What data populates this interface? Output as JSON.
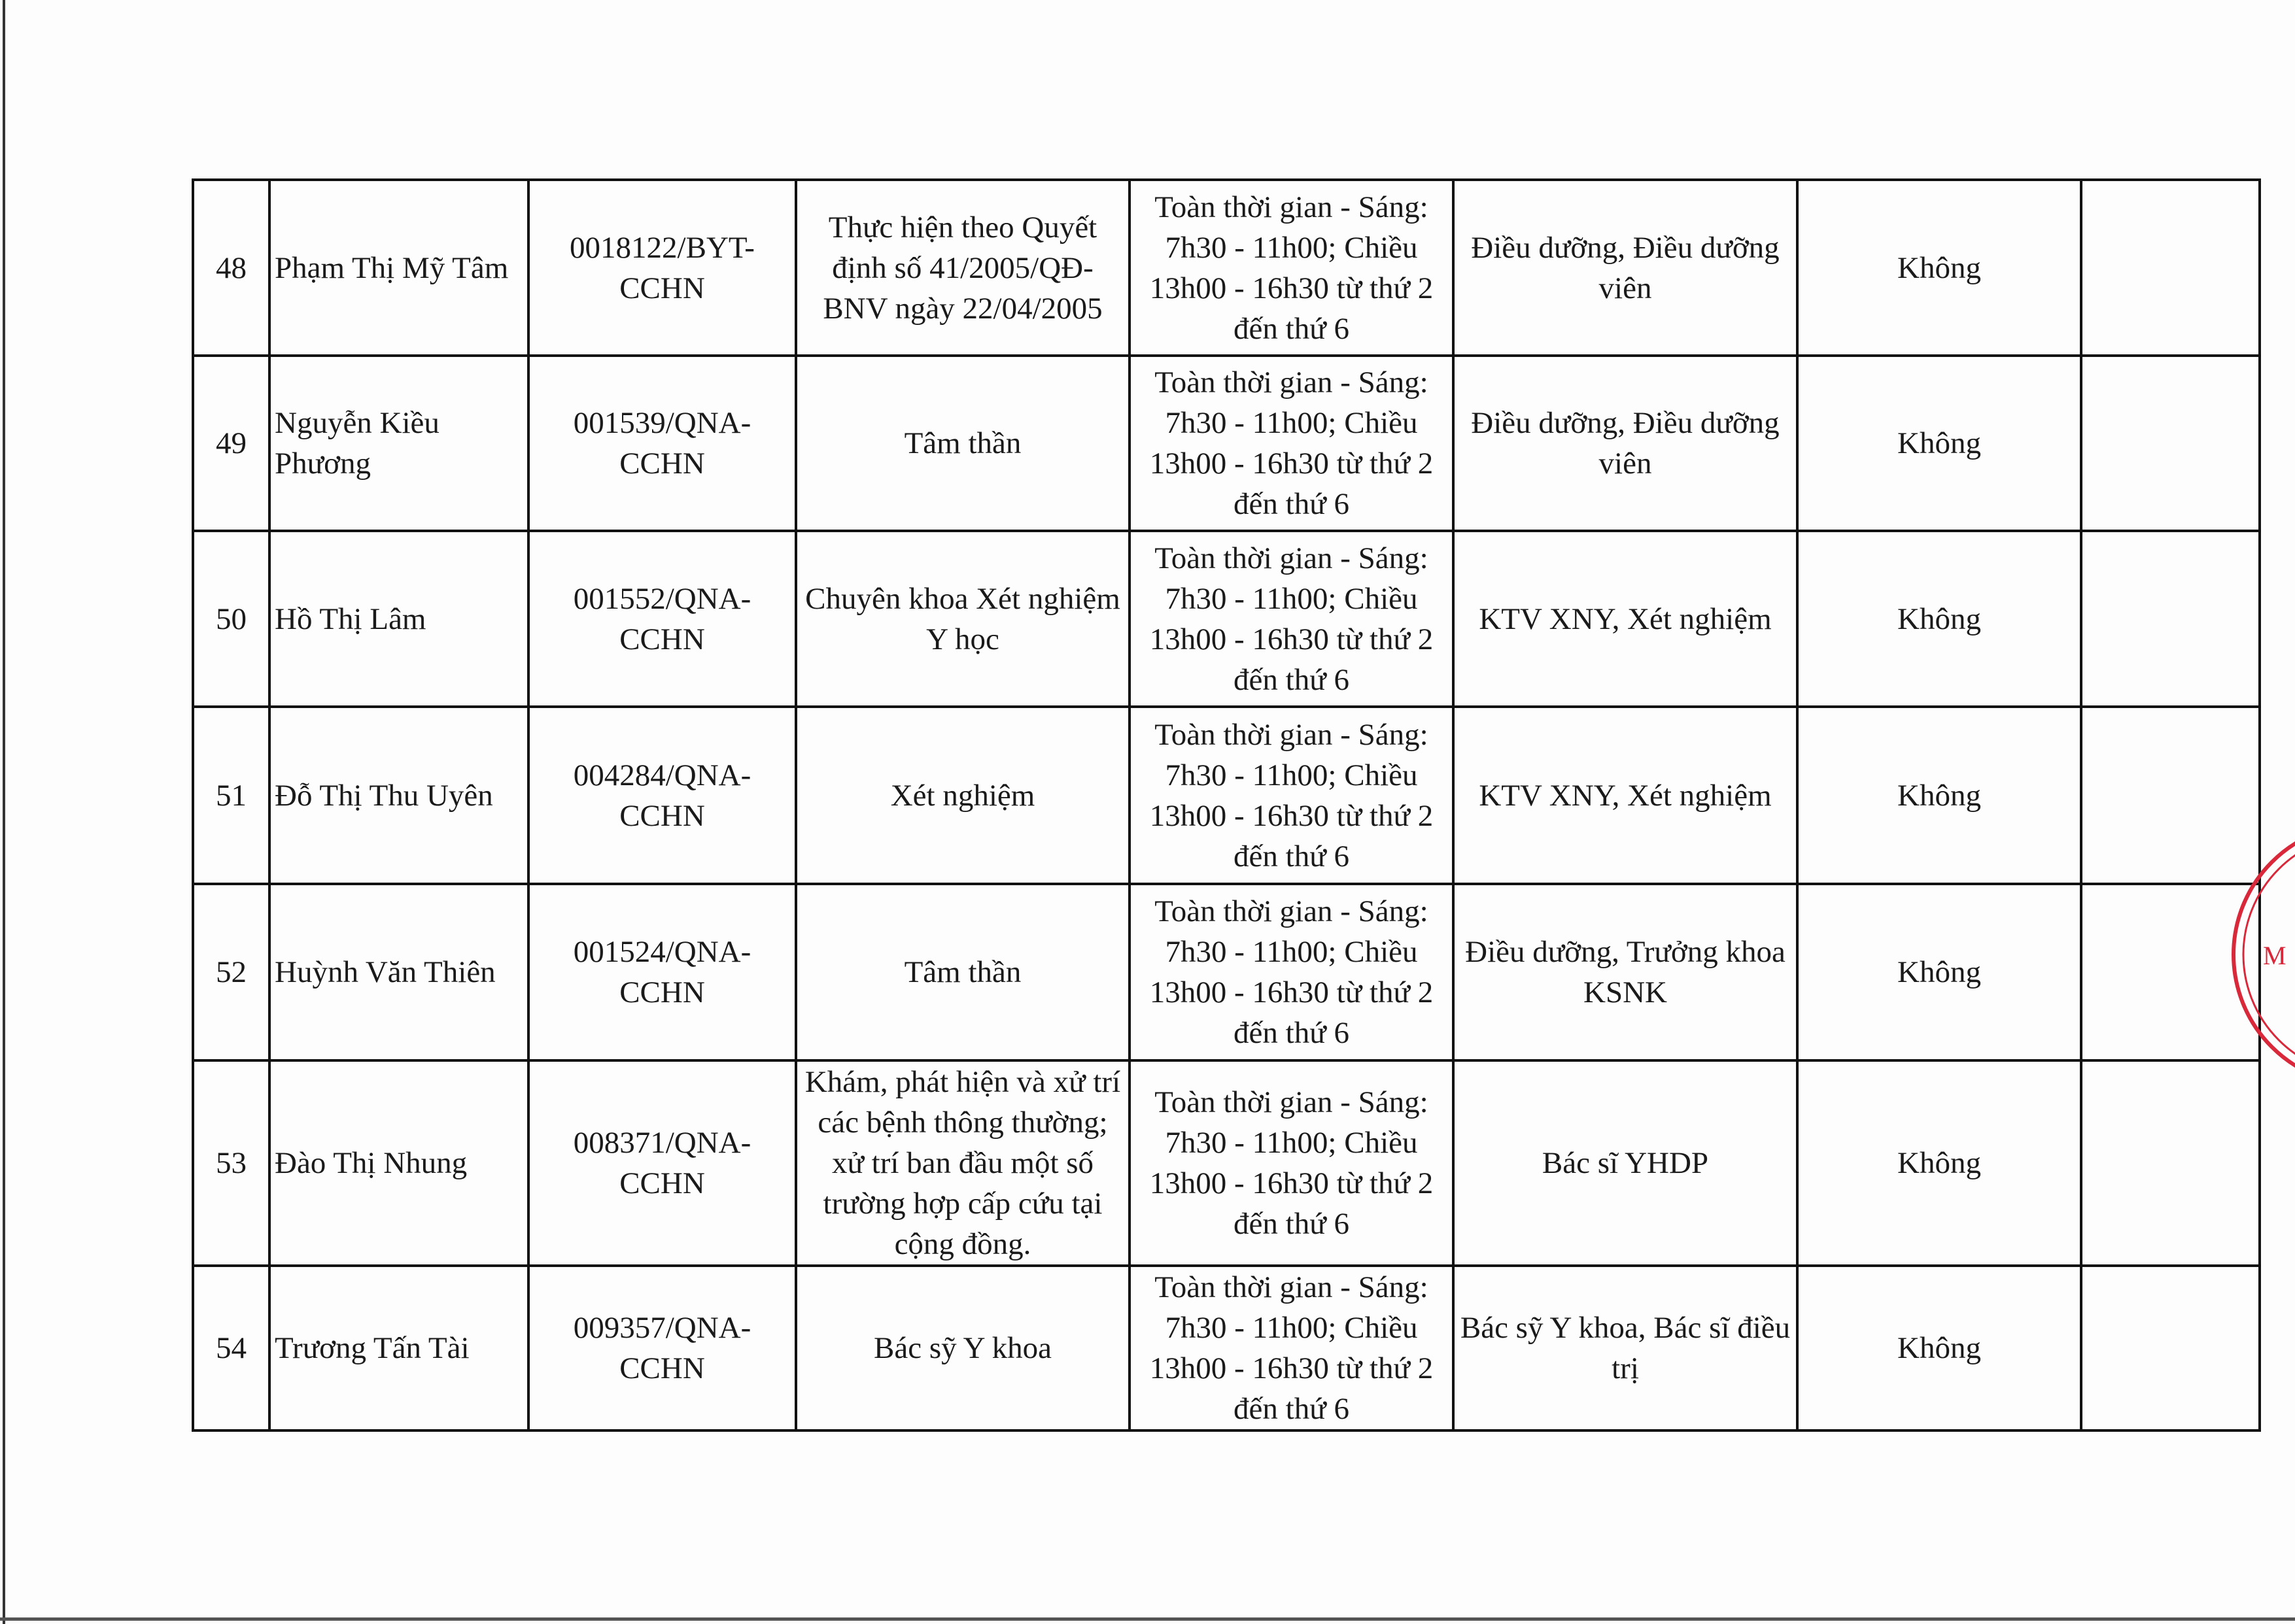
{
  "rows": [
    {
      "no": "48",
      "name": "Phạm Thị Mỹ Tâm",
      "cert": "0018122/BYT-CCHN",
      "scope": "Thực hiện theo Quyết định số 41/2005/QĐ-BNV ngày 22/04/2005",
      "time": "Toàn thời gian - Sáng: 7h30 - 11h00; Chiều 13h00 - 16h30 từ thứ 2 đến thứ 6",
      "position": "Điều dưỡng, Điều dưỡng viên",
      "other": "Không",
      "note": ""
    },
    {
      "no": "49",
      "name": "Nguyễn Kiều Phương",
      "cert": "001539/QNA-CCHN",
      "scope": "Tâm thần",
      "time": "Toàn thời gian - Sáng: 7h30 - 11h00; Chiều 13h00 - 16h30 từ thứ 2 đến thứ 6",
      "position": "Điều dưỡng, Điều dưỡng viên",
      "other": "Không",
      "note": ""
    },
    {
      "no": "50",
      "name": "Hồ Thị Lâm",
      "cert": "001552/QNA-CCHN",
      "scope": "Chuyên khoa Xét nghiệm Y học",
      "time": "Toàn thời gian - Sáng: 7h30 - 11h00; Chiều 13h00 - 16h30 từ thứ 2 đến thứ 6",
      "position": "KTV XNY, Xét nghiệm",
      "other": "Không",
      "note": ""
    },
    {
      "no": "51",
      "name": "Đỗ Thị Thu Uyên",
      "cert": "004284/QNA-CCHN",
      "scope": "Xét nghiệm",
      "time": "Toàn thời gian - Sáng: 7h30 - 11h00; Chiều 13h00 - 16h30 từ thứ 2 đến thứ 6",
      "position": "KTV XNY, Xét nghiệm",
      "other": "Không",
      "note": ""
    },
    {
      "no": "52",
      "name": "Huỳnh Văn Thiên",
      "cert": "001524/QNA-CCHN",
      "scope": "Tâm thần",
      "time": "Toàn thời gian - Sáng: 7h30 - 11h00; Chiều 13h00 - 16h30 từ thứ 2 đến thứ 6",
      "position": "Điều dưỡng, Trưởng khoa KSNK",
      "other": "Không",
      "note": ""
    },
    {
      "no": "53",
      "name": "Đào Thị Nhung",
      "cert": "008371/QNA-CCHN",
      "scope": "Khám, phát hiện và xử trí các bệnh thông thường; xử trí ban đầu một số trường hợp cấp cứu tại cộng đồng.",
      "time": "Toàn thời gian - Sáng: 7h30 - 11h00; Chiều 13h00 - 16h30 từ thứ 2 đến thứ 6",
      "position": "Bác sĩ YHDP",
      "other": "Không",
      "note": ""
    },
    {
      "no": "54",
      "name": "Trương Tấn Tài",
      "cert": "009357/QNA-CCHN",
      "scope": "Bác sỹ Y khoa",
      "time": "Toàn thời gian - Sáng: 7h30 - 11h00; Chiều 13h00 - 16h30 từ thứ 2 đến thứ 6",
      "position": "Bác sỹ Y khoa, Bác sĩ điều trị",
      "other": "Không",
      "note": ""
    }
  ],
  "stamp": {
    "color": "#d8283a"
  }
}
